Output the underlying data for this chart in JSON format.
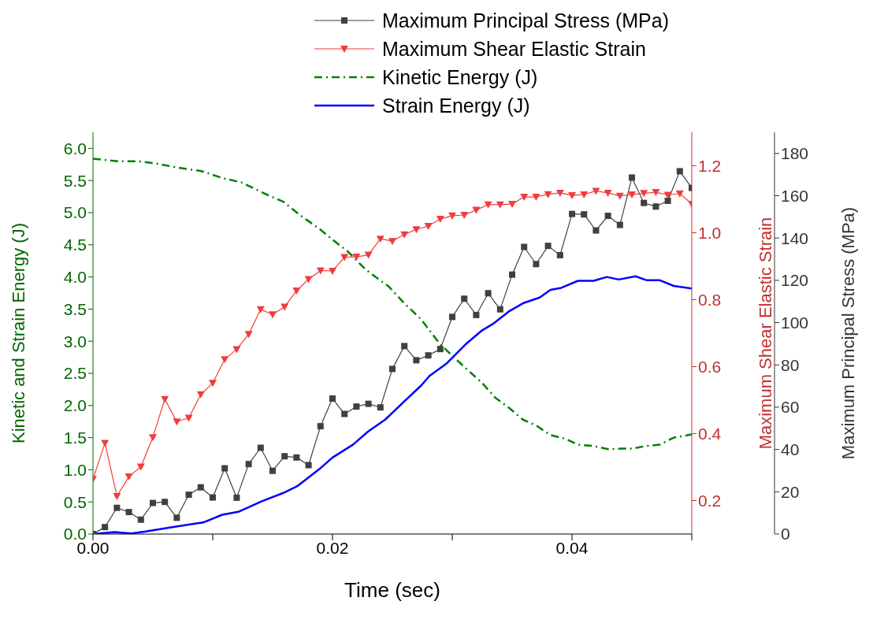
{
  "chart_data": {
    "type": "line",
    "xlabel": "Time (sec)",
    "ylabel": "Kinetic and Strain Energy (J)",
    "y2label": "Maximum Shear Elastic Strain",
    "y3label": "Maximum Principal Stress (MPa)",
    "xlim": [
      0,
      0.05
    ],
    "xticks": [
      {
        "value": 0,
        "label": "0.00"
      },
      {
        "value": 0.01,
        "label": null
      },
      {
        "value": 0.02,
        "label": "0.02"
      },
      {
        "value": 0.03,
        "label": null
      },
      {
        "value": 0.04,
        "label": "0.04"
      },
      {
        "value": 0.05,
        "label": null
      }
    ],
    "ylim": [
      0,
      6.25
    ],
    "yticks": [
      {
        "value": 0,
        "label": "0.0"
      },
      0.5,
      {
        "value": 1,
        "label": "1.0"
      },
      1.5,
      {
        "value": 2,
        "label": "2.0"
      },
      2.5,
      {
        "value": 3,
        "label": "3.0"
      },
      3.5,
      {
        "value": 4,
        "label": "4.0"
      },
      4.5,
      {
        "value": 5,
        "label": "5.0"
      },
      5.5,
      {
        "value": 6,
        "label": "6.0"
      }
    ],
    "y2lim": [
      0.1,
      1.3
    ],
    "y2ticks": [
      0.2,
      0.4,
      0.6,
      0.8,
      {
        "value": 1,
        "label": "1.0"
      },
      1.2
    ],
    "y3lim": [
      0,
      190
    ],
    "y3ticks": [
      0,
      20,
      40,
      60,
      80,
      100,
      120,
      140,
      160,
      180
    ],
    "legend": "top",
    "series": [
      {
        "name": "Maximum Principal Stress (MPa)",
        "color": "#404040",
        "axis": "y3",
        "marker": "square",
        "line_style": "solid",
        "x": [
          0,
          0.001,
          0.002,
          0.003,
          0.004,
          0.005,
          0.006,
          0.007,
          0.008,
          0.009,
          0.01,
          0.011,
          0.012,
          0.013,
          0.014,
          0.015,
          0.016,
          0.017,
          0.018,
          0.019,
          0.02,
          0.021,
          0.022,
          0.023,
          0.024,
          0.025,
          0.026,
          0.027,
          0.028,
          0.029,
          0.03,
          0.031,
          0.032,
          0.033,
          0.034,
          0.035,
          0.036,
          0.037,
          0.038,
          0.039,
          0.04,
          0.041,
          0.042,
          0.043,
          0.044,
          0.045,
          0.046,
          0.047,
          0.048,
          0.049,
          0.05
        ],
        "values": [
          0,
          3.3,
          12.4,
          10.4,
          6.8,
          14.7,
          15.2,
          7.7,
          18.6,
          22.1,
          17.3,
          31.1,
          17.2,
          33.1,
          40.8,
          29.9,
          36.8,
          36.2,
          32.6,
          51,
          64.1,
          56.8,
          60.3,
          61.6,
          59.9,
          78.1,
          88.9,
          82.2,
          84.5,
          87.5,
          102.7,
          111.3,
          103.6,
          113.9,
          106.3,
          122.7,
          135.8,
          127.7,
          136.3,
          131.9,
          151.4,
          151.2,
          143.6,
          150.5,
          146.2,
          168.6,
          156.6,
          154.9,
          157.6,
          171.6,
          163.7
        ]
      },
      {
        "name": "Maximum Shear Elastic Strain",
        "color": "#f03c3c",
        "axis": "y2",
        "marker": "triangle",
        "line_style": "solid",
        "x": [
          0,
          0.001,
          0.002,
          0.003,
          0.004,
          0.005,
          0.006,
          0.007,
          0.008,
          0.009,
          0.01,
          0.011,
          0.012,
          0.013,
          0.014,
          0.015,
          0.016,
          0.017,
          0.018,
          0.019,
          0.02,
          0.021,
          0.022,
          0.023,
          0.024,
          0.025,
          0.026,
          0.027,
          0.028,
          0.029,
          0.03,
          0.031,
          0.032,
          0.033,
          0.034,
          0.035,
          0.036,
          0.037,
          0.038,
          0.039,
          0.04,
          0.041,
          0.042,
          0.043,
          0.044,
          0.045,
          0.046,
          0.047,
          0.048,
          0.049,
          0.05
        ],
        "values": [
          0.264,
          0.372,
          0.213,
          0.272,
          0.301,
          0.389,
          0.503,
          0.436,
          0.447,
          0.517,
          0.551,
          0.622,
          0.652,
          0.697,
          0.771,
          0.756,
          0.779,
          0.827,
          0.861,
          0.887,
          0.886,
          0.927,
          0.928,
          0.934,
          0.982,
          0.975,
          0.995,
          1.01,
          1.02,
          1.041,
          1.051,
          1.053,
          1.068,
          1.084,
          1.084,
          1.086,
          1.107,
          1.107,
          1.115,
          1.119,
          1.112,
          1.114,
          1.125,
          1.119,
          1.11,
          1.114,
          1.118,
          1.121,
          1.113,
          1.117,
          1.086
        ]
      },
      {
        "name": "Kinetic Energy (J)",
        "color": "#008000",
        "axis": "y",
        "marker": "none",
        "line_style": "dashed",
        "x": [
          0,
          0.0021,
          0.0037,
          0.0051,
          0.0071,
          0.009,
          0.0108,
          0.0124,
          0.0143,
          0.0159,
          0.0173,
          0.0189,
          0.02,
          0.0212,
          0.0228,
          0.0247,
          0.026,
          0.0274,
          0.029,
          0.0302,
          0.0313,
          0.0325,
          0.0336,
          0.0347,
          0.0359,
          0.037,
          0.0382,
          0.0395,
          0.0405,
          0.0418,
          0.043,
          0.0441,
          0.045,
          0.0462,
          0.0473,
          0.0485,
          0.05
        ],
        "values": [
          5.84,
          5.8,
          5.8,
          5.77,
          5.7,
          5.65,
          5.54,
          5.47,
          5.3,
          5.17,
          4.96,
          4.75,
          4.58,
          4.41,
          4.11,
          3.85,
          3.59,
          3.34,
          2.95,
          2.74,
          2.55,
          2.35,
          2.12,
          1.97,
          1.78,
          1.69,
          1.54,
          1.48,
          1.39,
          1.37,
          1.32,
          1.33,
          1.33,
          1.37,
          1.39,
          1.5,
          1.55
        ]
      },
      {
        "name": "Strain Energy (J)",
        "color": "#0000ff",
        "axis": "y",
        "marker": "none",
        "line_style": "solid",
        "x": [
          0,
          0.0018,
          0.0032,
          0.0044,
          0.006,
          0.0081,
          0.0092,
          0.0108,
          0.0122,
          0.0141,
          0.0159,
          0.0171,
          0.0189,
          0.02,
          0.0217,
          0.023,
          0.0244,
          0.0258,
          0.0274,
          0.0281,
          0.0295,
          0.0311,
          0.0325,
          0.0334,
          0.0347,
          0.0359,
          0.0373,
          0.0382,
          0.0391,
          0.0405,
          0.0418,
          0.0429,
          0.0439,
          0.0453,
          0.0462,
          0.0473,
          0.0485,
          0.05
        ],
        "values": [
          0,
          0.03,
          0.01,
          0.04,
          0.09,
          0.15,
          0.18,
          0.3,
          0.35,
          0.51,
          0.64,
          0.75,
          1.01,
          1.19,
          1.39,
          1.6,
          1.78,
          2.03,
          2.31,
          2.46,
          2.65,
          2.95,
          3.17,
          3.27,
          3.46,
          3.59,
          3.68,
          3.8,
          3.83,
          3.94,
          3.94,
          4,
          3.96,
          4.01,
          3.95,
          3.95,
          3.86,
          3.82
        ]
      }
    ]
  }
}
